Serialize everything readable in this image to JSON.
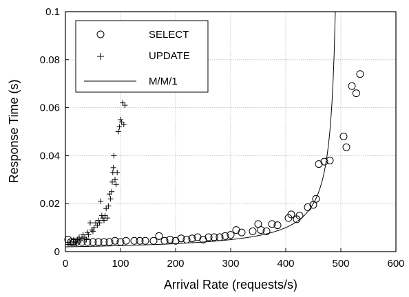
{
  "chart_data": {
    "type": "scatter",
    "xlabel": "Arrival Rate (requests/s)",
    "ylabel": "Response Time (s)",
    "xlim": [
      0,
      600
    ],
    "ylim": [
      0,
      0.1
    ],
    "x_ticks": [
      0,
      100,
      200,
      300,
      400,
      500,
      600
    ],
    "y_ticks": [
      0,
      0.02,
      0.04,
      0.06,
      0.08,
      0.1
    ],
    "x_tick_labels": [
      "0",
      "100",
      "200",
      "300",
      "400",
      "500",
      "600"
    ],
    "y_tick_labels": [
      "0",
      "0.02",
      "0.04",
      "0.06",
      "0.08",
      "0.1"
    ],
    "grid": true,
    "legend_position": "top-left",
    "series": [
      {
        "name": "SELECT",
        "marker": "circle",
        "points": [
          [
            5,
            0.005
          ],
          [
            10,
            0.004
          ],
          [
            15,
            0.004
          ],
          [
            20,
            0.004
          ],
          [
            30,
            0.004
          ],
          [
            40,
            0.004
          ],
          [
            50,
            0.004
          ],
          [
            60,
            0.004
          ],
          [
            70,
            0.004
          ],
          [
            80,
            0.004
          ],
          [
            90,
            0.0045
          ],
          [
            100,
            0.004
          ],
          [
            110,
            0.0045
          ],
          [
            125,
            0.0045
          ],
          [
            135,
            0.0045
          ],
          [
            145,
            0.0045
          ],
          [
            160,
            0.0045
          ],
          [
            170,
            0.0065
          ],
          [
            180,
            0.0045
          ],
          [
            190,
            0.005
          ],
          [
            200,
            0.0045
          ],
          [
            210,
            0.0055
          ],
          [
            220,
            0.005
          ],
          [
            230,
            0.0055
          ],
          [
            240,
            0.006
          ],
          [
            250,
            0.005
          ],
          [
            260,
            0.006
          ],
          [
            270,
            0.006
          ],
          [
            280,
            0.006
          ],
          [
            290,
            0.0065
          ],
          [
            300,
            0.007
          ],
          [
            310,
            0.009
          ],
          [
            320,
            0.008
          ],
          [
            340,
            0.0085
          ],
          [
            350,
            0.0115
          ],
          [
            355,
            0.009
          ],
          [
            365,
            0.0085
          ],
          [
            375,
            0.0115
          ],
          [
            385,
            0.011
          ],
          [
            405,
            0.014
          ],
          [
            410,
            0.0155
          ],
          [
            420,
            0.0135
          ],
          [
            425,
            0.015
          ],
          [
            440,
            0.0185
          ],
          [
            450,
            0.0195
          ],
          [
            455,
            0.022
          ],
          [
            460,
            0.0365
          ],
          [
            470,
            0.0375
          ],
          [
            480,
            0.038
          ],
          [
            505,
            0.048
          ],
          [
            510,
            0.0435
          ],
          [
            520,
            0.069
          ],
          [
            528,
            0.066
          ],
          [
            535,
            0.074
          ]
        ]
      },
      {
        "name": "UPDATE",
        "marker": "plus",
        "points": [
          [
            5,
            0.003
          ],
          [
            8,
            0.004
          ],
          [
            12,
            0.003
          ],
          [
            15,
            0.005
          ],
          [
            18,
            0.004
          ],
          [
            20,
            0.0035
          ],
          [
            22,
            0.005
          ],
          [
            25,
            0.006
          ],
          [
            28,
            0.0045
          ],
          [
            30,
            0.0055
          ],
          [
            32,
            0.007
          ],
          [
            35,
            0.006
          ],
          [
            38,
            0.005
          ],
          [
            40,
            0.008
          ],
          [
            42,
            0.007
          ],
          [
            45,
            0.012
          ],
          [
            48,
            0.009
          ],
          [
            50,
            0.0085
          ],
          [
            52,
            0.01
          ],
          [
            55,
            0.012
          ],
          [
            58,
            0.011
          ],
          [
            60,
            0.013
          ],
          [
            62,
            0.012
          ],
          [
            64,
            0.021
          ],
          [
            66,
            0.015
          ],
          [
            68,
            0.014
          ],
          [
            70,
            0.013
          ],
          [
            72,
            0.015
          ],
          [
            74,
            0.018
          ],
          [
            76,
            0.014
          ],
          [
            78,
            0.019
          ],
          [
            80,
            0.024
          ],
          [
            82,
            0.022
          ],
          [
            84,
            0.025
          ],
          [
            85,
            0.029
          ],
          [
            86,
            0.033
          ],
          [
            87,
            0.035
          ],
          [
            88,
            0.04
          ],
          [
            90,
            0.03
          ],
          [
            92,
            0.028
          ],
          [
            94,
            0.033
          ],
          [
            96,
            0.05
          ],
          [
            98,
            0.052
          ],
          [
            100,
            0.055
          ],
          [
            102,
            0.054
          ],
          [
            104,
            0.062
          ],
          [
            106,
            0.053
          ],
          [
            108,
            0.061
          ]
        ]
      },
      {
        "name": "M/M/1",
        "marker": "line",
        "model": {
          "service_time": 0.002,
          "saturation_rate": 500
        }
      }
    ]
  }
}
